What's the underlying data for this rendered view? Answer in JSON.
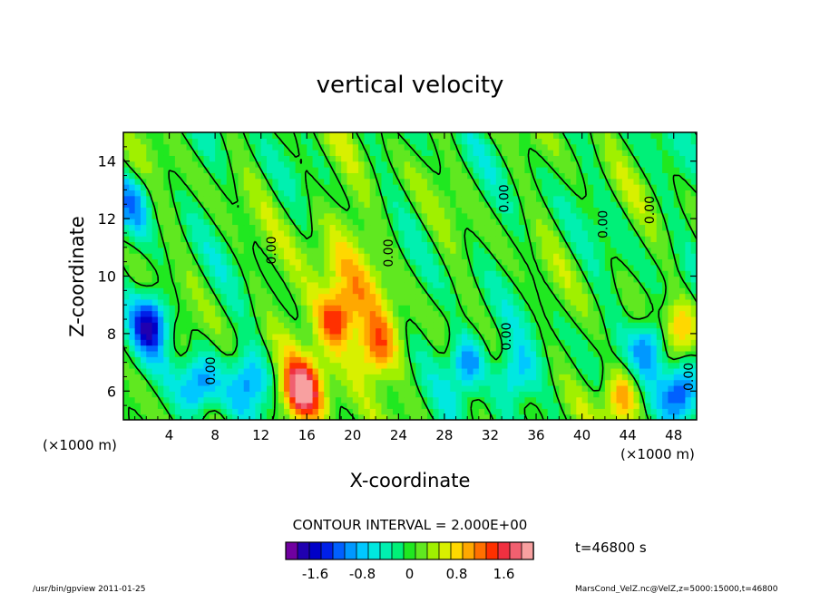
{
  "chart_data": {
    "type": "heatmap",
    "title": "vertical velocity",
    "xlabel": "X-coordinate",
    "ylabel": "Z-coordinate",
    "x_unit_left": "(×1000 m)",
    "x_unit_right": "(×1000 m)",
    "xlim": [
      0,
      50
    ],
    "ylim": [
      5,
      15
    ],
    "x_ticks": [
      4,
      8,
      12,
      16,
      20,
      24,
      28,
      32,
      36,
      40,
      44,
      48
    ],
    "y_ticks": [
      6,
      8,
      10,
      12,
      14
    ],
    "contour_labels": [
      {
        "text": "0.00",
        "x": 8,
        "y": 6.7
      },
      {
        "text": "0.00",
        "x": 13.3,
        "y": 10.9
      },
      {
        "text": "0.00",
        "x": 23.5,
        "y": 10.8
      },
      {
        "text": "0.00",
        "x": 33.8,
        "y": 7.9
      },
      {
        "text": "0.00",
        "x": 33.6,
        "y": 12.7
      },
      {
        "text": "0.00",
        "x": 42.2,
        "y": 11.8
      },
      {
        "text": "0.00",
        "x": 46.3,
        "y": 12.3
      },
      {
        "text": "0.00",
        "x": 49.7,
        "y": 6.5
      }
    ],
    "features": [
      {
        "x": 2.4,
        "z": 8.4,
        "value": -1.6
      },
      {
        "x": 6.5,
        "z": 6.2,
        "value": -1.2
      },
      {
        "x": 11.0,
        "z": 6.4,
        "value": -1.0
      },
      {
        "x": 15.5,
        "z": 6.0,
        "value": 1.8
      },
      {
        "x": 18.5,
        "z": 8.5,
        "value": 1.2
      },
      {
        "x": 22.0,
        "z": 7.5,
        "value": 1.0
      },
      {
        "x": 30.0,
        "z": 7.0,
        "value": -1.3
      },
      {
        "x": 34.0,
        "z": 6.5,
        "value": -1.0
      },
      {
        "x": 43.5,
        "z": 5.8,
        "value": 1.2
      },
      {
        "x": 46.0,
        "z": 7.6,
        "value": -1.4
      },
      {
        "x": 48.5,
        "z": 6.0,
        "value": -1.6
      },
      {
        "x": 48.5,
        "z": 8.2,
        "value": 1.0
      },
      {
        "x": 0.8,
        "z": 12.5,
        "value": -0.8
      }
    ]
  },
  "colorbar": {
    "colors": [
      "#7000a0",
      "#2000b0",
      "#0000c8",
      "#0020e8",
      "#0060ff",
      "#0098ff",
      "#00c8ff",
      "#00e8e0",
      "#00f0b0",
      "#00f078",
      "#20e820",
      "#60e820",
      "#a0f000",
      "#d8f000",
      "#ffd800",
      "#ffa800",
      "#ff7000",
      "#ff3000",
      "#f03040",
      "#f06070",
      "#f8a0a0"
    ],
    "tick_labels": [
      "-1.6",
      "-0.8",
      "0",
      "0.8",
      "1.6"
    ],
    "tick_values": [
      -1.6,
      -0.8,
      0,
      0.8,
      1.6
    ],
    "range": [
      -2.1,
      2.1
    ]
  },
  "contour_interval": "CONTOUR INTERVAL = 2.000E+00",
  "time_label": "t=46800 s",
  "footer_left": "/usr/bin/gpview  2011-01-25",
  "footer_right": "MarsCond_VelZ.nc@VelZ,z=5000:15000,t=46800"
}
